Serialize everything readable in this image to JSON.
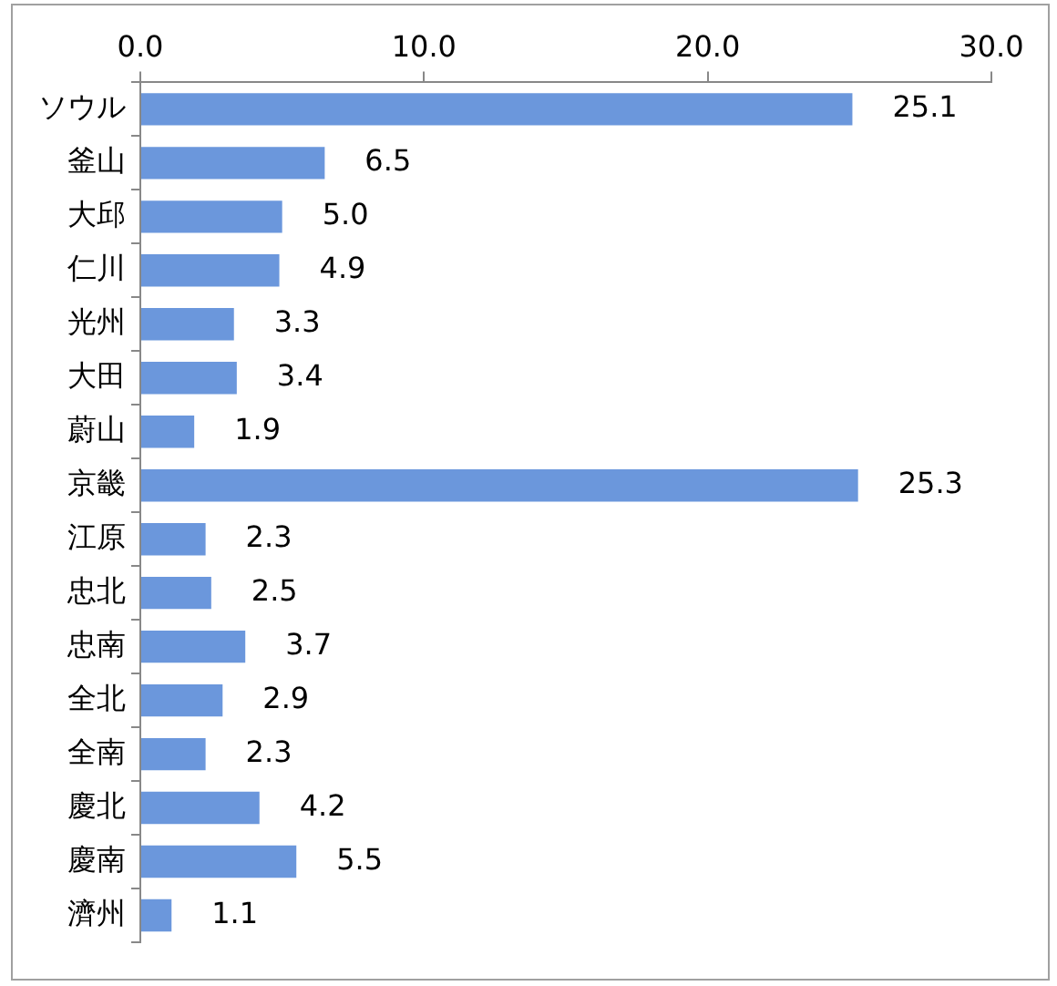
{
  "chart_data": {
    "type": "bar",
    "orientation": "horizontal",
    "categories": [
      "ソウル",
      "釜山",
      "大邱",
      "仁川",
      "光州",
      "大田",
      "蔚山",
      "京畿",
      "江原",
      "忠北",
      "忠南",
      "全北",
      "全南",
      "慶北",
      "慶南",
      "濟州"
    ],
    "values": [
      25.1,
      6.5,
      5.0,
      4.9,
      3.3,
      3.4,
      1.9,
      25.3,
      2.3,
      2.5,
      3.7,
      2.9,
      2.3,
      4.2,
      5.5,
      1.1
    ],
    "value_labels": [
      "25.1",
      "6.5",
      "5.0",
      "4.9",
      "3.3",
      "3.4",
      "1.9",
      "25.3",
      "2.3",
      "2.5",
      "3.7",
      "2.9",
      "2.3",
      "4.2",
      "5.5",
      "1.1"
    ],
    "color": "#6b97dc",
    "xlim": [
      0,
      30
    ],
    "xticks": [
      {
        "value": 0,
        "label": "0.0"
      },
      {
        "value": 10,
        "label": "10.0"
      },
      {
        "value": 20,
        "label": "20.0"
      },
      {
        "value": 30,
        "label": "30.0"
      }
    ],
    "grid": false,
    "legend": false
  }
}
